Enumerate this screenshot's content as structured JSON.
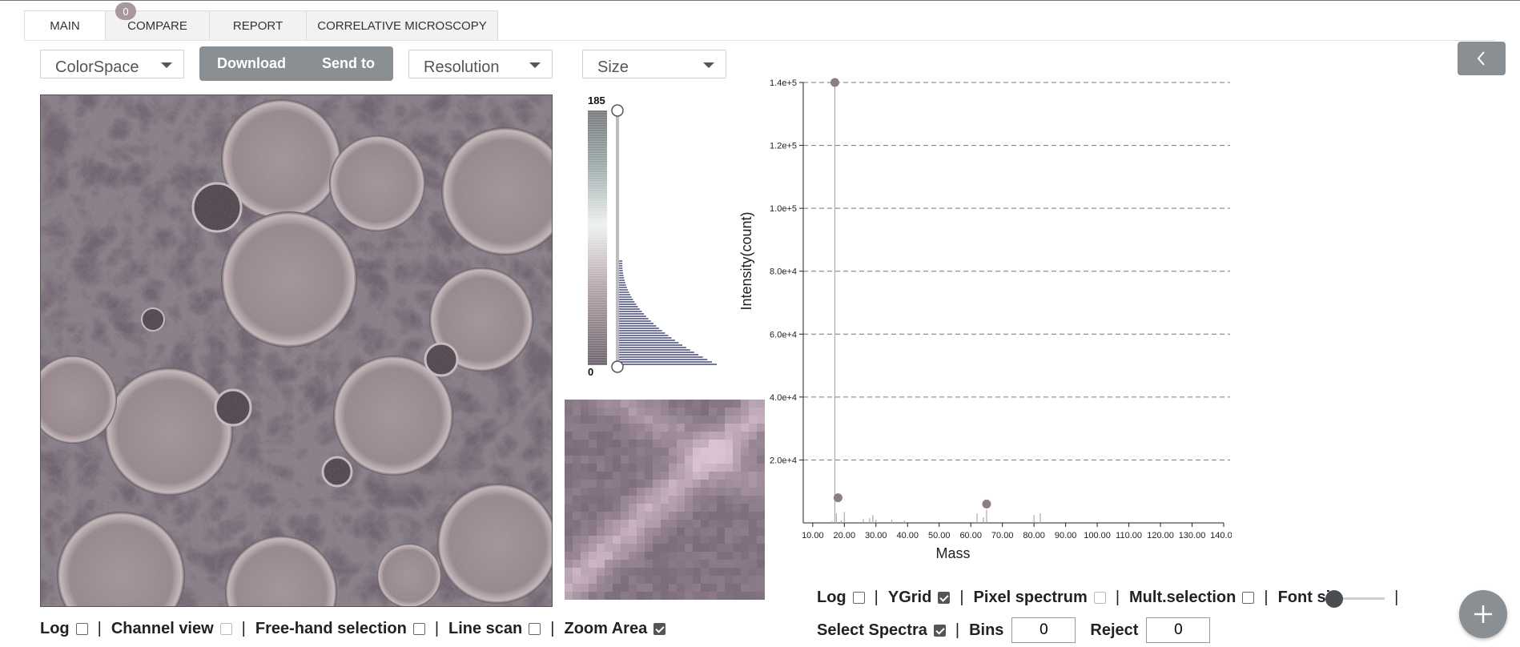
{
  "tabs": [
    {
      "label": "MAIN",
      "active": true
    },
    {
      "label": "COMPARE",
      "active": false
    },
    {
      "label": "REPORT",
      "active": false
    },
    {
      "label": "CORRELATIVE MICROSCOPY",
      "active": false
    }
  ],
  "compare_badge": "0",
  "toolbar": {
    "colorspace": "ColorSpace",
    "download": "Download",
    "send_to": "Send to",
    "resolution": "Resolution",
    "size": "Size",
    "collapse_icon": "chevron-left-icon",
    "fab_icon": "plus-icon"
  },
  "colorbar": {
    "max": "185",
    "min": "0"
  },
  "image_controls": {
    "log": {
      "label": "Log",
      "checked": false
    },
    "channel_view": {
      "label": "Channel view",
      "checked": false
    },
    "freehand": {
      "label": "Free-hand selection",
      "checked": false
    },
    "line_scan": {
      "label": "Line scan",
      "checked": false
    },
    "zoom_area": {
      "label": "Zoom Area",
      "checked": true
    },
    "separator": "|"
  },
  "spectrum_controls": {
    "log": {
      "label": "Log",
      "checked": false
    },
    "ygrid": {
      "label": "YGrid",
      "checked": true
    },
    "pixel_spectrum": {
      "label": "Pixel spectrum",
      "checked": false
    },
    "mult_selection": {
      "label": "Mult.selection",
      "checked": false
    },
    "font_size": {
      "label": "Font siz",
      "value": 0
    },
    "select_spectra": {
      "label": "Select Spectra",
      "checked": true
    },
    "bins": {
      "label": "Bins",
      "value": "0"
    },
    "reject": {
      "label": "Reject",
      "value": "0"
    },
    "separator": "|"
  },
  "chart_data": {
    "type": "line",
    "title": "",
    "xlabel": "Mass",
    "ylabel": "Intensity(count)",
    "xlim": [
      7,
      140
    ],
    "ylim": [
      0,
      140000
    ],
    "x_ticks": [
      "10.00",
      "20.00",
      "30.00",
      "40.00",
      "50.00",
      "60.00",
      "70.00",
      "80.00",
      "90.00",
      "100.00",
      "110.00",
      "120.00",
      "130.00",
      "140.00"
    ],
    "y_ticks": [
      "2.0e+4",
      "4.0e+4",
      "6.0e+4",
      "8.0e+4",
      "1.0e+5",
      "1.2e+5",
      "1.4e+5"
    ],
    "grid": "y",
    "series": [
      {
        "x": [
          9,
          11,
          16,
          17,
          17.5,
          19,
          20,
          26,
          28,
          29,
          30,
          35,
          39,
          62,
          64,
          65,
          80,
          82
        ],
        "values": [
          400,
          400,
          600,
          140000,
          3000,
          800,
          3500,
          1200,
          1500,
          2500,
          1000,
          1000,
          700,
          3000,
          1800,
          4200,
          2500,
          3000
        ]
      }
    ],
    "markers": [
      {
        "x": 17,
        "y": 140000
      },
      {
        "x": 18,
        "y": 8000
      },
      {
        "x": 65,
        "y": 6000
      }
    ]
  }
}
